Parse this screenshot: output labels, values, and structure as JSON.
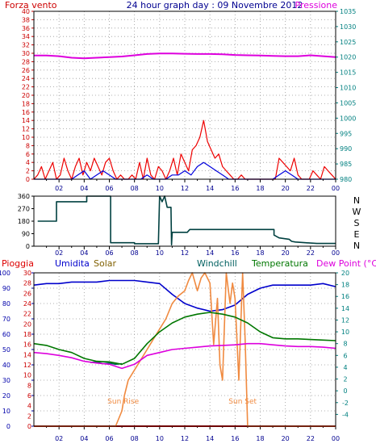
{
  "header": {
    "left_label": "Forza vento",
    "title": "24 hour graph day : 09 Novembre 2012",
    "right_label": "Pressione"
  },
  "colors": {
    "wind": "#ee0000",
    "gust": "#0000dd",
    "pressure": "#dd00dd",
    "direction": "#004040",
    "rain": "#dd0000",
    "humidity": "#0000cc",
    "solar": "#f08a40",
    "windchill": "#006060",
    "temperature": "#007700",
    "dewpoint": "#dd00dd",
    "left_axis": "#cc0000",
    "right_axis": "#008080",
    "grid": "#999999"
  },
  "chart_data": [
    {
      "type": "line",
      "name": "wind-pressure",
      "x_ticks": [
        "02",
        "04",
        "06",
        "08",
        "10",
        "12",
        "14",
        "16",
        "18",
        "20",
        "22",
        "00"
      ],
      "xlim": [
        0,
        24
      ],
      "y_left_ticks": [
        "0",
        "2",
        "4",
        "6",
        "8",
        "10",
        "12",
        "14",
        "16",
        "18",
        "20",
        "22",
        "24",
        "26",
        "28",
        "30",
        "32",
        "34",
        "36",
        "38",
        "40"
      ],
      "ylim_left": [
        0,
        40
      ],
      "y_right_ticks": [
        "980",
        "985",
        "990",
        "995",
        "1000",
        "1005",
        "1010",
        "1015",
        "1020",
        "1025",
        "1030",
        "1035"
      ],
      "ylim_right": [
        980,
        1035
      ],
      "series": [
        {
          "key": "wind",
          "axis": "left",
          "x": [
            0,
            0.3,
            0.6,
            0.9,
            1.2,
            1.5,
            1.8,
            2.1,
            2.4,
            2.7,
            3.0,
            3.3,
            3.6,
            3.9,
            4.2,
            4.5,
            4.8,
            5.1,
            5.4,
            5.7,
            6.0,
            6.3,
            6.6,
            6.9,
            7.2,
            7.5,
            7.8,
            8.1,
            8.4,
            8.7,
            9.0,
            9.3,
            9.6,
            9.9,
            10.2,
            10.5,
            10.8,
            11.1,
            11.4,
            11.7,
            12.0,
            12.3,
            12.6,
            12.9,
            13.2,
            13.5,
            13.8,
            14.1,
            14.4,
            14.7,
            15.0,
            15.3,
            15.6,
            15.9,
            16.2,
            16.5,
            16.8,
            17.1,
            17.4,
            17.7,
            18.0,
            18.3,
            18.6,
            18.9,
            19.2,
            19.5,
            19.8,
            20.1,
            20.4,
            20.7,
            21.0,
            21.3,
            21.6,
            21.9,
            22.2,
            22.5,
            22.8,
            23.1,
            23.4,
            23.7,
            24.0
          ],
          "y": [
            0,
            1,
            3,
            0,
            2,
            4,
            0,
            1,
            5,
            2,
            0,
            3,
            5,
            1,
            4,
            2,
            5,
            3,
            1,
            4,
            5,
            2,
            0,
            1,
            0,
            0,
            1,
            0,
            4,
            0,
            5,
            1,
            0,
            3,
            2,
            0,
            2,
            5,
            1,
            6,
            4,
            2,
            7,
            8,
            10,
            14,
            9,
            7,
            5,
            6,
            3,
            2,
            1,
            0,
            0,
            1,
            0,
            0,
            0,
            0,
            0,
            0,
            0,
            0,
            0,
            5,
            4,
            3,
            2,
            5,
            1,
            0,
            0,
            0,
            2,
            1,
            0,
            3,
            2,
            1,
            0
          ]
        },
        {
          "key": "gust",
          "axis": "left",
          "x": [
            0,
            0.5,
            1.0,
            1.5,
            2.0,
            2.5,
            3.0,
            3.5,
            4.0,
            4.5,
            5.0,
            5.5,
            6.0,
            6.5,
            7.0,
            7.5,
            8.0,
            8.5,
            9.0,
            9.5,
            10.0,
            10.5,
            11.0,
            11.5,
            12.0,
            12.5,
            13.0,
            13.5,
            14.0,
            14.5,
            15.0,
            15.5,
            16.0,
            16.5,
            17.0,
            17.5,
            18.0,
            18.5,
            19.0,
            19.5,
            20.0,
            20.5,
            21.0,
            21.5,
            22.0,
            22.5,
            23.0,
            23.5,
            24.0
          ],
          "y": [
            0,
            0,
            0,
            0,
            0,
            0,
            0,
            1,
            2,
            0,
            1,
            2,
            1,
            0,
            0,
            0,
            0,
            0,
            1,
            0,
            0,
            0,
            1,
            1,
            2,
            1,
            3,
            4,
            3,
            2,
            1,
            0,
            0,
            0,
            0,
            0,
            0,
            0,
            0,
            1,
            2,
            1,
            0,
            0,
            0,
            0,
            0,
            0,
            0
          ]
        },
        {
          "key": "pressure",
          "axis": "right",
          "x": [
            0,
            1,
            2,
            3,
            4,
            5,
            6,
            7,
            8,
            9,
            10,
            11,
            12,
            13,
            14,
            15,
            16,
            17,
            18,
            19,
            20,
            21,
            22,
            23,
            24
          ],
          "y": [
            1020.5,
            1020.5,
            1020.3,
            1019.8,
            1019.6,
            1019.8,
            1020.0,
            1020.2,
            1020.6,
            1021.0,
            1021.2,
            1021.2,
            1021.1,
            1021.0,
            1021.0,
            1020.9,
            1020.7,
            1020.6,
            1020.5,
            1020.4,
            1020.3,
            1020.3,
            1020.6,
            1020.3,
            1020.0
          ]
        }
      ]
    },
    {
      "type": "line",
      "name": "wind-direction",
      "x_ticks": [
        "02",
        "04",
        "06",
        "08",
        "10",
        "12",
        "14",
        "16",
        "18",
        "20",
        "22",
        "00"
      ],
      "xlim": [
        0,
        24
      ],
      "y_left_ticks": [
        "0",
        "90",
        "180",
        "270",
        "360"
      ],
      "ylim_left": [
        0,
        360
      ],
      "y_right_labels": [
        "N",
        "W",
        "S",
        "E",
        "N"
      ],
      "series": [
        {
          "key": "direction",
          "x": [
            0.3,
            1.8,
            1.8,
            4.2,
            4.2,
            6.1,
            6.1,
            8.0,
            8.0,
            9.9,
            10.0,
            10.2,
            10.4,
            10.6,
            10.9,
            10.95,
            11.0,
            11.3,
            12.2,
            12.4,
            13.8,
            14.0,
            15.0,
            17.0,
            19.1,
            19.1,
            19.5,
            20.3,
            20.5,
            20.8,
            21.6,
            22.5,
            24.0
          ],
          "y": [
            180,
            180,
            320,
            320,
            360,
            360,
            25,
            25,
            18,
            18,
            360,
            320,
            360,
            280,
            280,
            10,
            100,
            100,
            100,
            120,
            120,
            120,
            120,
            120,
            120,
            80,
            60,
            50,
            35,
            30,
            25,
            20,
            20
          ]
        }
      ]
    },
    {
      "type": "line",
      "name": "weather",
      "legend": [
        "Pioggia",
        "Umidita",
        "Solar",
        "Windchill",
        "Temperatura",
        "Dew Point (°C)"
      ],
      "x_ticks": [
        "02",
        "04",
        "06",
        "08",
        "10",
        "12",
        "14",
        "16",
        "18",
        "20",
        "22",
        "00"
      ],
      "xlim": [
        0,
        24
      ],
      "y_left_ticks": [
        "0",
        "10",
        "20",
        "30",
        "40",
        "50",
        "60",
        "70",
        "80",
        "90",
        "100"
      ],
      "ylim_left": [
        0,
        100
      ],
      "y_solar_ticks": [
        "0",
        "2",
        "4",
        "6",
        "8",
        "10",
        "12",
        "14",
        "16",
        "18",
        "20",
        "22",
        "24",
        "26",
        "28",
        "30"
      ],
      "ylim_solar": [
        0,
        30
      ],
      "y_right_ticks": [
        "-4",
        "-2",
        "0",
        "2",
        "4",
        "6",
        "8",
        "10",
        "12",
        "14",
        "16",
        "18",
        "20"
      ],
      "ylim_right": [
        -6,
        20
      ],
      "annotations": [
        {
          "text": "Sun Rise",
          "x": 7.1
        },
        {
          "text": "Sun Set",
          "x": 16.6
        }
      ],
      "series": [
        {
          "key": "rain",
          "axis": "left",
          "x": [
            0,
            24
          ],
          "y": [
            0,
            0
          ]
        },
        {
          "key": "humidity",
          "axis": "left",
          "x": [
            0,
            1,
            2,
            3,
            4,
            5,
            6,
            7,
            8,
            9,
            10,
            11,
            12,
            13,
            14,
            15,
            16,
            17,
            18,
            19,
            20,
            21,
            22,
            23,
            24
          ],
          "y": [
            92,
            93,
            93,
            94,
            94,
            94,
            95,
            95,
            95,
            94,
            93,
            86,
            80,
            77,
            75,
            76,
            79,
            86,
            90,
            92,
            92,
            92,
            92,
            93,
            91
          ]
        },
        {
          "key": "solar",
          "axis": "solar",
          "x": [
            0,
            6.5,
            7.0,
            7.2,
            7.5,
            8,
            8.5,
            9,
            9.5,
            10,
            10.5,
            11,
            11.5,
            12,
            12.3,
            12.6,
            13.0,
            13.3,
            13.6,
            14.0,
            14.3,
            14.6,
            14.8,
            15.0,
            15.3,
            15.6,
            15.8,
            16.0,
            16.3,
            16.6,
            16.8,
            17.0,
            24
          ],
          "y": [
            0,
            0,
            3,
            6,
            9,
            11,
            13,
            15,
            17,
            19,
            21,
            24,
            25.5,
            26.5,
            28.5,
            30,
            26.5,
            29,
            30,
            28,
            16,
            25,
            12,
            9,
            30,
            24,
            28,
            25,
            9,
            30,
            17,
            0,
            0
          ]
        },
        {
          "key": "windchill",
          "axis": "right",
          "x": [
            4.5,
            5.0,
            5.5,
            6.0,
            6.5,
            7.0
          ],
          "y": [
            4.8,
            4.9,
            4.6,
            4.7,
            4.5,
            4.6
          ]
        },
        {
          "key": "temperature",
          "axis": "right",
          "x": [
            0,
            1,
            2,
            3,
            4,
            5,
            6,
            7,
            8,
            9,
            10,
            11,
            12,
            13,
            14,
            15,
            16,
            17,
            18,
            19,
            20,
            21,
            22,
            23,
            24
          ],
          "y": [
            8,
            7.7,
            7.0,
            6.5,
            5.5,
            5.0,
            4.9,
            4.5,
            5.5,
            8.0,
            10.0,
            11.5,
            12.5,
            13.0,
            13.3,
            13.0,
            12.5,
            11.5,
            10.0,
            9.0,
            8.8,
            8.8,
            8.7,
            8.6,
            8.5
          ]
        },
        {
          "key": "dewpoint",
          "axis": "right",
          "x": [
            0,
            1,
            2,
            3,
            4,
            5,
            6,
            7,
            8,
            9,
            10,
            11,
            12,
            13,
            14,
            15,
            16,
            17,
            18,
            19,
            20,
            21,
            22,
            23,
            24
          ],
          "y": [
            6.5,
            6.3,
            6.0,
            5.6,
            5.0,
            4.7,
            4.5,
            3.8,
            4.5,
            6.0,
            6.5,
            7.0,
            7.2,
            7.4,
            7.6,
            7.7,
            7.8,
            8.0,
            8.0,
            7.8,
            7.6,
            7.5,
            7.5,
            7.4,
            7.2
          ]
        }
      ]
    }
  ]
}
